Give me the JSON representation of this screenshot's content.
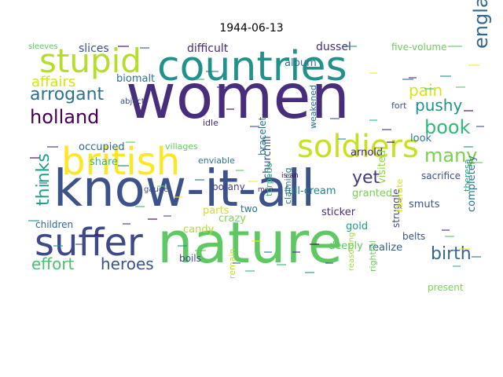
{
  "title": "1944-06-13",
  "words": [
    {
      "text": "women",
      "color": "#472d7b"
    },
    {
      "text": "know-it-all",
      "color": "#3b528b"
    },
    {
      "text": "nature",
      "color": "#5ec962"
    },
    {
      "text": "countries",
      "color": "#21918c"
    },
    {
      "text": "british",
      "color": "#fde725"
    },
    {
      "text": "soldiers",
      "color": "#c8e020"
    },
    {
      "text": "stupid",
      "color": "#b5de2b"
    },
    {
      "text": "suffer",
      "color": "#3e4989"
    },
    {
      "text": "holland",
      "color": "#440154"
    },
    {
      "text": "arrogant",
      "color": "#2c728e"
    },
    {
      "text": "affairs",
      "color": "#d8e219"
    },
    {
      "text": "england",
      "color": "#31688e"
    },
    {
      "text": "thinks",
      "color": "#1f9e89"
    },
    {
      "text": "effort",
      "color": "#4ac16d"
    },
    {
      "text": "heroes",
      "color": "#3b528b"
    },
    {
      "text": "birth",
      "color": "#31688e"
    },
    {
      "text": "book",
      "color": "#35b779"
    },
    {
      "text": "pushy",
      "color": "#21918c"
    },
    {
      "text": "many",
      "color": "#7ad151"
    },
    {
      "text": "pain",
      "color": "#d8e219"
    },
    {
      "text": "yet",
      "color": "#443983"
    },
    {
      "text": "slices",
      "color": "#3b528b"
    },
    {
      "text": "difficult",
      "color": "#482878"
    },
    {
      "text": "dussel",
      "color": "#472d7b"
    },
    {
      "text": "five-volume",
      "color": "#6ccd5a"
    },
    {
      "text": "album",
      "color": "#2a788e"
    },
    {
      "text": "biomalt",
      "color": "#2c728e"
    },
    {
      "text": "occupied",
      "color": "#31688e"
    },
    {
      "text": "share",
      "color": "#35b779"
    },
    {
      "text": "arnold",
      "color": "#481f70"
    },
    {
      "text": "visited",
      "color": "#90d743"
    },
    {
      "text": "look",
      "color": "#2a788e"
    },
    {
      "text": "sacrifice",
      "color": "#3b528b"
    },
    {
      "text": "granted",
      "color": "#7ad151"
    },
    {
      "text": "completely",
      "color": "#2c728e"
    },
    {
      "text": "theresa",
      "color": "#22a884"
    },
    {
      "text": "smuts",
      "color": "#39568c"
    },
    {
      "text": "gold",
      "color": "#1fa188"
    },
    {
      "text": "struggle",
      "color": "#3e4989"
    },
    {
      "text": "full-cream",
      "color": "#26828e"
    },
    {
      "text": "sticker",
      "color": "#472d7b"
    },
    {
      "text": "belts",
      "color": "#3b528b"
    },
    {
      "text": "realize",
      "color": "#365d8d"
    },
    {
      "text": "deeply",
      "color": "#5ec962"
    },
    {
      "text": "crazy",
      "color": "#86d549"
    },
    {
      "text": "candy",
      "color": "#b5de2b"
    },
    {
      "text": "parts",
      "color": "#d2e21b"
    },
    {
      "text": "two",
      "color": "#2c728e"
    },
    {
      "text": "botany",
      "color": "#424086"
    },
    {
      "text": "churchill",
      "color": "#3b528b"
    },
    {
      "text": "bracelet",
      "color": "#2a788e"
    },
    {
      "text": "children",
      "color": "#31688e"
    },
    {
      "text": "present",
      "color": "#7ad151"
    },
    {
      "text": "rightful",
      "color": "#6ccd5a"
    },
    {
      "text": "reasoning",
      "color": "#9fda3a"
    },
    {
      "text": "remain",
      "color": "#bddf26"
    },
    {
      "text": "boils",
      "color": "#404688"
    },
    {
      "text": "fort",
      "color": "#3b528b"
    },
    {
      "text": "weakened",
      "color": "#2c728e"
    },
    {
      "text": "idle",
      "color": "#482878"
    },
    {
      "text": "abject",
      "color": "#3e4989"
    },
    {
      "text": "sleeves",
      "color": "#5ec962"
    },
    {
      "text": "enviable",
      "color": "#2a788e"
    },
    {
      "text": "villages",
      "color": "#65cb5e"
    },
    {
      "text": "gauge",
      "color": "#3e4989"
    },
    {
      "text": "men",
      "color": "#472d7b"
    },
    {
      "text": "torpedo",
      "color": "#35b779"
    },
    {
      "text": "claiming",
      "color": "#2c728e"
    },
    {
      "text": "liberate",
      "color": "#d8e219"
    },
    {
      "text": "is-an",
      "color": "#440154"
    }
  ]
}
